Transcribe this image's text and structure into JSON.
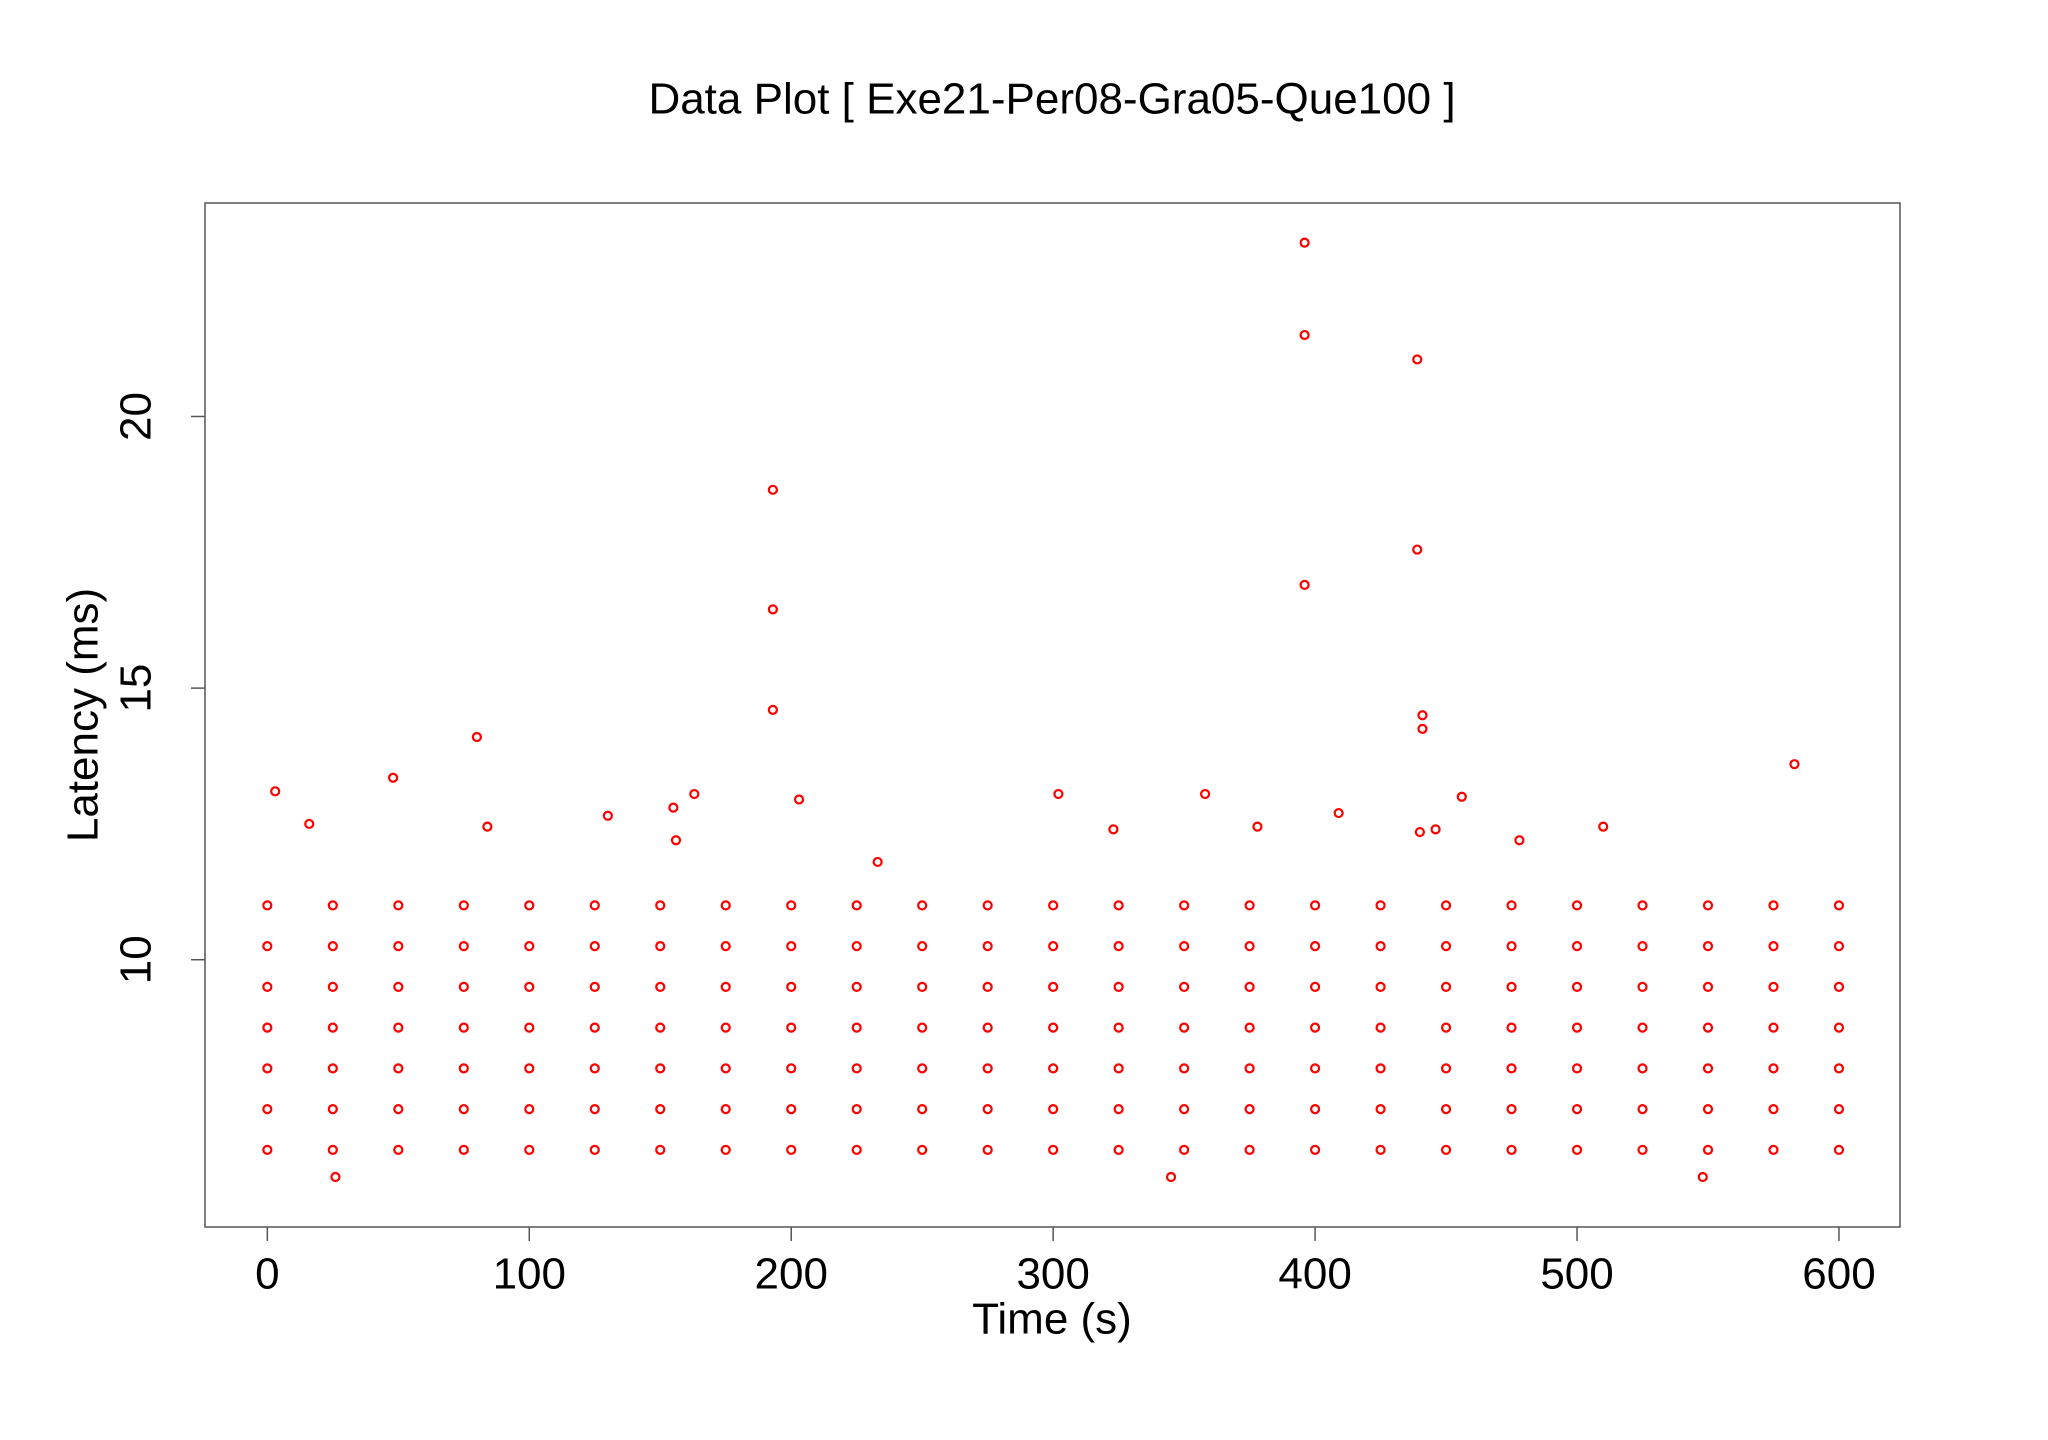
{
  "chart_data": {
    "type": "scatter",
    "title": "Data Plot [ Exe21-Per08-Gra05-Que100 ]",
    "x_label": "Time (s)",
    "y_label": "Latency (ms)",
    "color": "#ff0000",
    "xlim": [
      -23.8,
      623.3
    ],
    "ylim": [
      5.08,
      23.93
    ],
    "xticks": [
      0,
      100,
      200,
      300,
      400,
      500,
      600
    ],
    "yticks": [
      10,
      15,
      20
    ],
    "x": [
      0,
      0,
      0,
      0,
      0,
      0,
      0,
      25,
      25,
      25,
      25,
      25,
      25,
      25,
      50,
      50,
      50,
      50,
      50,
      50,
      50,
      75,
      75,
      75,
      75,
      75,
      75,
      75,
      100,
      100,
      100,
      100,
      100,
      100,
      100,
      125,
      125,
      125,
      125,
      125,
      125,
      125,
      150,
      150,
      150,
      150,
      150,
      150,
      150,
      175,
      175,
      175,
      175,
      175,
      175,
      175,
      200,
      200,
      200,
      200,
      200,
      200,
      200,
      225,
      225,
      225,
      225,
      225,
      225,
      225,
      250,
      250,
      250,
      250,
      250,
      250,
      250,
      275,
      275,
      275,
      275,
      275,
      275,
      275,
      300,
      300,
      300,
      300,
      300,
      300,
      300,
      325,
      325,
      325,
      325,
      325,
      325,
      325,
      350,
      350,
      350,
      350,
      350,
      350,
      350,
      375,
      375,
      375,
      375,
      375,
      375,
      375,
      400,
      400,
      400,
      400,
      400,
      400,
      400,
      425,
      425,
      425,
      425,
      425,
      425,
      425,
      450,
      450,
      450,
      450,
      450,
      450,
      450,
      475,
      475,
      475,
      475,
      475,
      475,
      475,
      500,
      500,
      500,
      500,
      500,
      500,
      500,
      525,
      525,
      525,
      525,
      525,
      525,
      525,
      550,
      550,
      550,
      550,
      550,
      550,
      550,
      575,
      575,
      575,
      575,
      575,
      575,
      575,
      600,
      600,
      600,
      600,
      600,
      600,
      600,
      3,
      48,
      80,
      16,
      84,
      130,
      155,
      156,
      163,
      193,
      193,
      193,
      203,
      233,
      302,
      323,
      358,
      378,
      396,
      396,
      396,
      409,
      439,
      439,
      441,
      441,
      440,
      446,
      456,
      478,
      510,
      583,
      26,
      345,
      548
    ],
    "y": [
      6.5,
      7.25,
      8,
      8.75,
      9.5,
      10.25,
      11,
      6.5,
      7.25,
      8,
      8.75,
      9.5,
      10.25,
      11,
      6.5,
      7.25,
      8,
      8.75,
      9.5,
      10.25,
      11,
      6.5,
      7.25,
      8,
      8.75,
      9.5,
      10.25,
      11,
      6.5,
      7.25,
      8,
      8.75,
      9.5,
      10.25,
      11,
      6.5,
      7.25,
      8,
      8.75,
      9.5,
      10.25,
      11,
      6.5,
      7.25,
      8,
      8.75,
      9.5,
      10.25,
      11,
      6.5,
      7.25,
      8,
      8.75,
      9.5,
      10.25,
      11,
      6.5,
      7.25,
      8,
      8.75,
      9.5,
      10.25,
      11,
      6.5,
      7.25,
      8,
      8.75,
      9.5,
      10.25,
      11,
      6.5,
      7.25,
      8,
      8.75,
      9.5,
      10.25,
      11,
      6.5,
      7.25,
      8,
      8.75,
      9.5,
      10.25,
      11,
      6.5,
      7.25,
      8,
      8.75,
      9.5,
      10.25,
      11,
      6.5,
      7.25,
      8,
      8.75,
      9.5,
      10.25,
      11,
      6.5,
      7.25,
      8,
      8.75,
      9.5,
      10.25,
      11,
      6.5,
      7.25,
      8,
      8.75,
      9.5,
      10.25,
      11,
      6.5,
      7.25,
      8,
      8.75,
      9.5,
      10.25,
      11,
      6.5,
      7.25,
      8,
      8.75,
      9.5,
      10.25,
      11,
      6.5,
      7.25,
      8,
      8.75,
      9.5,
      10.25,
      11,
      6.5,
      7.25,
      8,
      8.75,
      9.5,
      10.25,
      11,
      6.5,
      7.25,
      8,
      8.75,
      9.5,
      10.25,
      11,
      6.5,
      7.25,
      8,
      8.75,
      9.5,
      10.25,
      11,
      6.5,
      7.25,
      8,
      8.75,
      9.5,
      10.25,
      11,
      6.5,
      7.25,
      8,
      8.75,
      9.5,
      10.25,
      11,
      6.5,
      7.25,
      8,
      8.75,
      9.5,
      10.25,
      11,
      13.1,
      13.35,
      14.1,
      12.5,
      12.45,
      12.65,
      12.8,
      12.2,
      13.05,
      18.65,
      16.45,
      14.6,
      12.95,
      11.8,
      13.05,
      12.4,
      13.05,
      12.45,
      23.2,
      21.5,
      16.9,
      12.7,
      21.05,
      17.55,
      14.5,
      14.25,
      12.35,
      12.4,
      13,
      12.2,
      12.45,
      13.6,
      6,
      6,
      6
    ]
  }
}
